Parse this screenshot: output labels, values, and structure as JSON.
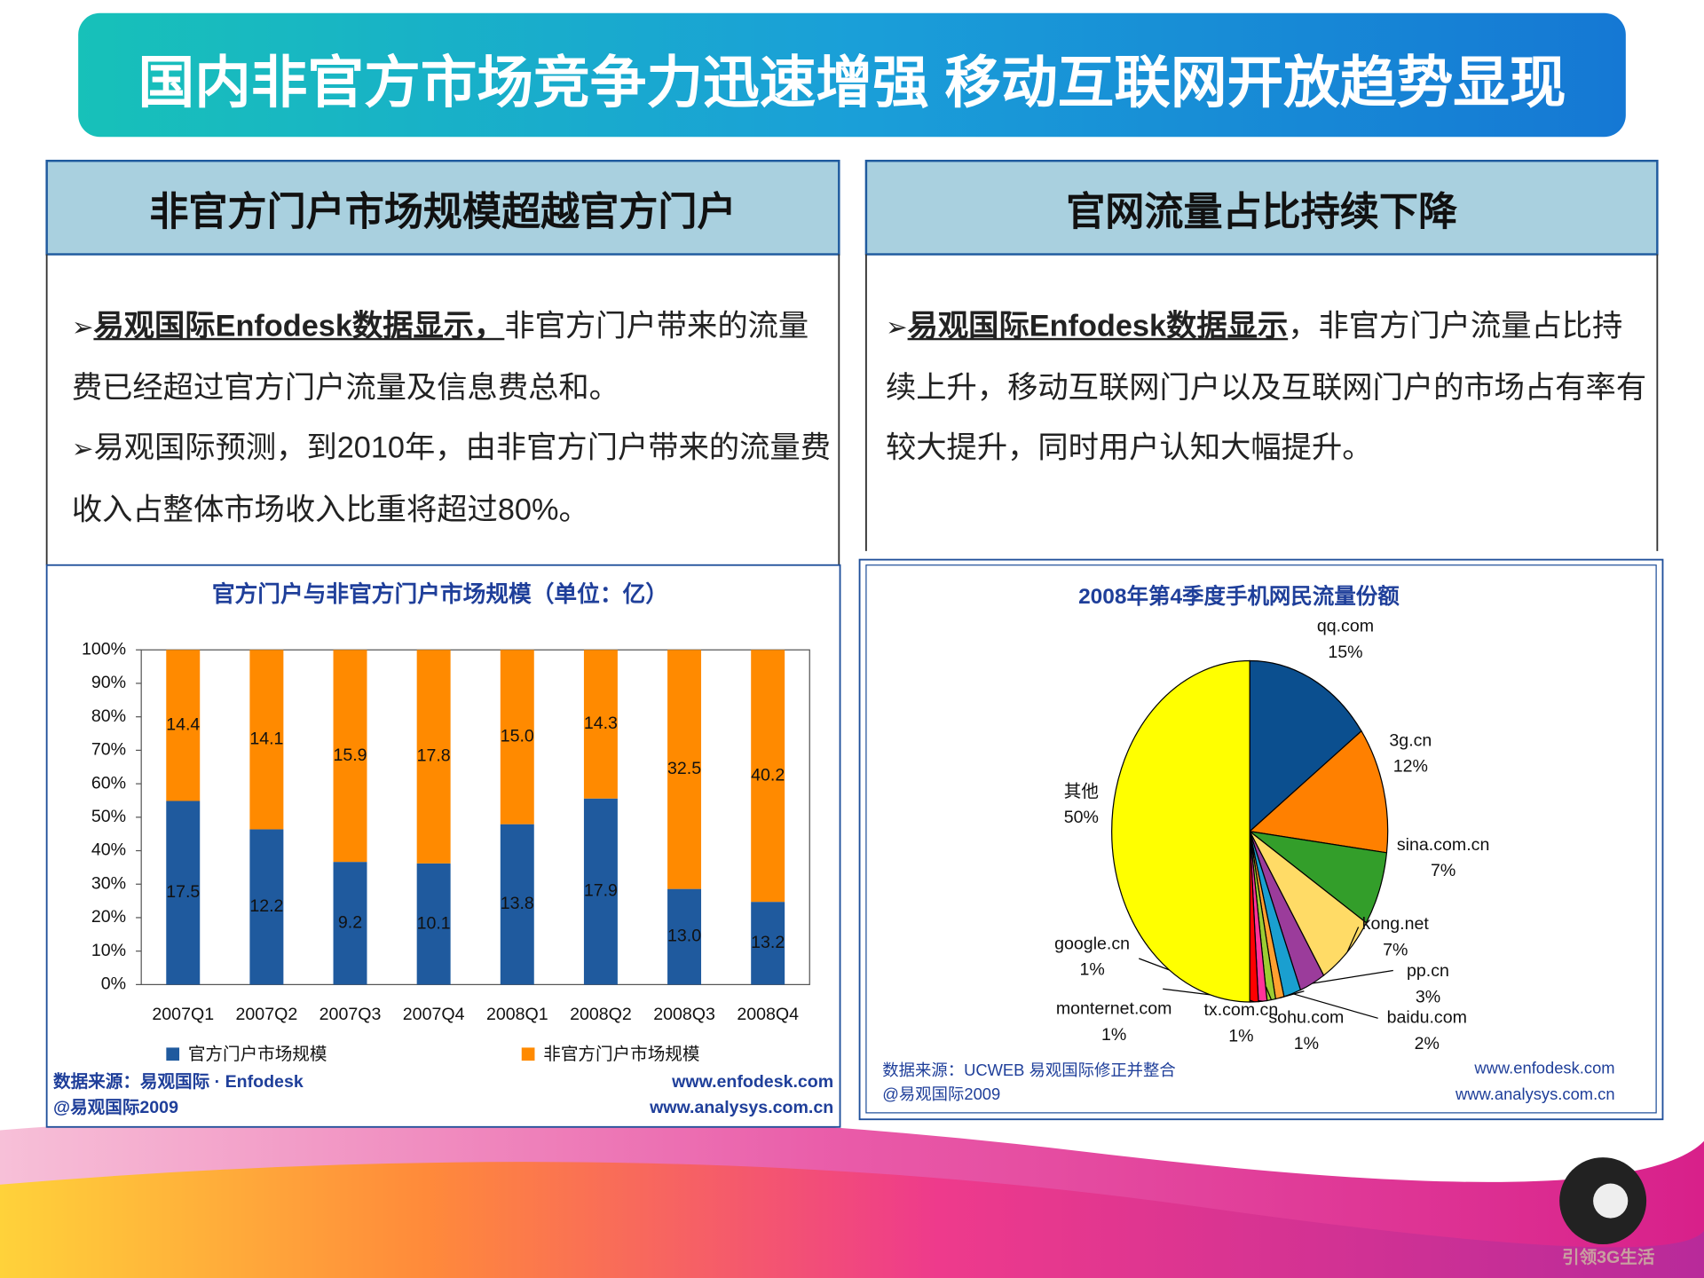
{
  "title": "国内非官方市场竞争力迅速增强 移动互联网开放趋势显现",
  "panels": [
    {
      "heading": "非官方门户市场规模超越官方门户",
      "paragraphs": [
        [
          "易观国际Enfodesk数据显示，",
          "非官方门户带来的流量费已经超过官方门户流量及信息费总和。"
        ],
        [
          "易观国际预测，到2010年，由非官方门户带来的流量费收入占整体市场收入比重将超过80%。"
        ]
      ]
    },
    {
      "heading": "官网流量占比持续下降",
      "paragraphs": [
        [
          "易观国际Enfodesk数据显示",
          "，非官方门户流量占比持续上升，移动互联网门户以及互联网门户的市场占有率有较大提升，同时用户认知大幅提升。"
        ]
      ]
    }
  ],
  "logo_text": "引领3G生活",
  "chart_data": [
    {
      "type": "bar",
      "stacked": true,
      "title": "官方门户与非官方门户市场规模（单位：亿）",
      "categories": [
        "2007Q1",
        "2007Q2",
        "2007Q3",
        "2007Q4",
        "2008Q1",
        "2008Q2",
        "2008Q3",
        "2008Q4"
      ],
      "series": [
        {
          "name": "官方门户市场规模",
          "color": "#1f5a9e",
          "values": [
            17.5,
            12.2,
            9.2,
            10.1,
            13.8,
            17.9,
            13.0,
            13.2
          ],
          "value_labels": [
            "17.5",
            "12.2",
            "9.2",
            "10.1",
            "13.8",
            "17.9",
            "13.0",
            "13.2"
          ]
        },
        {
          "name": "非官方门户市场规模",
          "color": "#ff8a00",
          "values": [
            14.4,
            14.1,
            15.9,
            17.8,
            15.0,
            14.3,
            32.5,
            40.2
          ],
          "value_labels": [
            "14.4",
            "14.1",
            "15.9",
            "17.8",
            "15.0",
            "14.3",
            "32.5",
            "40.2"
          ]
        }
      ],
      "ylim": [
        0,
        100
      ],
      "yticks": [
        {
          "value": 0,
          "label": "0%"
        },
        {
          "value": 10,
          "label": "10%"
        },
        {
          "value": 20,
          "label": "20%"
        },
        {
          "value": 30,
          "label": "30%"
        },
        {
          "value": 40,
          "label": "40%"
        },
        {
          "value": 50,
          "label": "50%"
        },
        {
          "value": 60,
          "label": "60%"
        },
        {
          "value": 70,
          "label": "70%"
        },
        {
          "value": 80,
          "label": "80%"
        },
        {
          "value": 90,
          "label": "90%"
        },
        {
          "value": 100,
          "label": "100%"
        }
      ],
      "grid": false,
      "source": "数据来源：易观国际 · Enfodesk",
      "copyright": "@易观国际2009",
      "urls": [
        "www.enfodesk.com",
        "www.analysys.com.cn"
      ]
    },
    {
      "type": "pie",
      "title": "2008年第4季度手机网民流量份额",
      "categories": [
        "qq.com",
        "3g.cn",
        "sina.com.cn",
        "kong.net",
        "pp.cn",
        "baidu.com",
        "sohu.com",
        "tx.com.cn",
        "monternet.com",
        "google.cn",
        "其他"
      ],
      "values": [
        15,
        12,
        7,
        7,
        3,
        2,
        1,
        1,
        1,
        1,
        50
      ],
      "value_labels": [
        "15%",
        "12%",
        "7%",
        "7%",
        "3%",
        "2%",
        "1%",
        "1%",
        "1%",
        "1%",
        "50%"
      ],
      "colors": [
        "#0b4f8f",
        "#ff8000",
        "#339e2a",
        "#ffdb66",
        "#9b3c9b",
        "#1a9fd0",
        "#ffa030",
        "#9ccc33",
        "#ff3399",
        "#ff0000",
        "#ffff00"
      ],
      "source": "数据来源：UCWEB 易观国际修正并整合",
      "copyright": "@易观国际2009",
      "urls": [
        "www.enfodesk.com",
        "www.analysys.com.cn"
      ]
    }
  ]
}
